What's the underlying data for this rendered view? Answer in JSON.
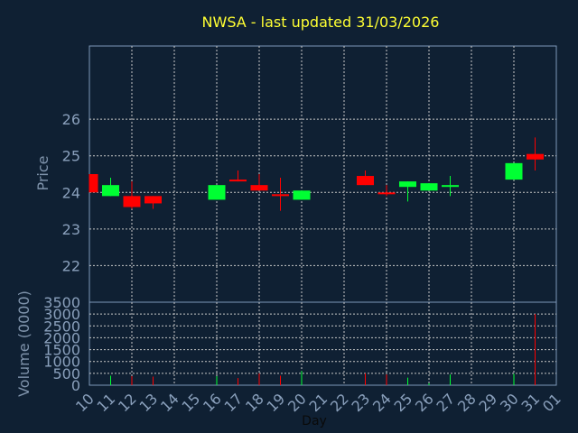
{
  "chart_data": {
    "type": "candlestick",
    "title": "NWSA - last updated 31/03/2026",
    "price_panel": {
      "ylabel": "Price",
      "yticks": [
        "22",
        "23",
        "24",
        "25",
        "26"
      ],
      "ylim": [
        21.0,
        28.0
      ]
    },
    "volume_panel": {
      "ylabel": "Volume (0000)",
      "yticks": [
        "0",
        "500",
        "1000",
        "1500",
        "2000",
        "2500",
        "3000",
        "3500"
      ],
      "ylim": [
        0,
        3500
      ]
    },
    "xlabel": "Day",
    "xticks": [
      "10",
      "11",
      "12",
      "13",
      "14",
      "15",
      "16",
      "17",
      "18",
      "19",
      "20",
      "21",
      "22",
      "23",
      "24",
      "25",
      "26",
      "27",
      "28",
      "29",
      "30",
      "31",
      "01"
    ],
    "candles": [
      {
        "day": 10,
        "open": 24.5,
        "high": 24.5,
        "low": 24.0,
        "close": 24.0,
        "volume": 0
      },
      {
        "day": 11,
        "open": 23.9,
        "high": 24.4,
        "low": 23.9,
        "close": 24.2,
        "volume": 400
      },
      {
        "day": 12,
        "open": 23.9,
        "high": 24.3,
        "low": 23.55,
        "close": 23.6,
        "volume": 380
      },
      {
        "day": 13,
        "open": 23.9,
        "high": 23.9,
        "low": 23.55,
        "close": 23.7,
        "volume": 360
      },
      {
        "day": 16,
        "open": 23.8,
        "high": 24.2,
        "low": 23.8,
        "close": 24.2,
        "volume": 380
      },
      {
        "day": 17,
        "open": 24.35,
        "high": 24.6,
        "low": 24.3,
        "close": 24.3,
        "volume": 300
      },
      {
        "day": 18,
        "open": 24.2,
        "high": 24.5,
        "low": 24.05,
        "close": 24.05,
        "volume": 500
      },
      {
        "day": 19,
        "open": 23.95,
        "high": 24.4,
        "low": 23.5,
        "close": 23.9,
        "volume": 400
      },
      {
        "day": 20,
        "open": 23.8,
        "high": 24.05,
        "low": 23.8,
        "close": 24.05,
        "volume": 600
      },
      {
        "day": 23,
        "open": 24.45,
        "high": 24.6,
        "low": 24.2,
        "close": 24.2,
        "volume": 500
      },
      {
        "day": 24,
        "open": 24.0,
        "high": 24.2,
        "low": 23.9,
        "close": 23.95,
        "volume": 450
      },
      {
        "day": 25,
        "open": 24.15,
        "high": 24.3,
        "low": 23.75,
        "close": 24.3,
        "volume": 320
      },
      {
        "day": 26,
        "open": 24.05,
        "high": 24.25,
        "low": 24.05,
        "close": 24.25,
        "volume": 80
      },
      {
        "day": 27,
        "open": 24.15,
        "high": 24.45,
        "low": 23.9,
        "close": 24.2,
        "volume": 450
      },
      {
        "day": 30,
        "open": 24.35,
        "high": 24.8,
        "low": 24.35,
        "close": 24.8,
        "volume": 480
      },
      {
        "day": 31,
        "open": 25.05,
        "high": 25.5,
        "low": 24.6,
        "close": 24.9,
        "volume": 3000
      }
    ],
    "grid": true,
    "colors": {
      "background": "#0f2033",
      "plot_background": "#0f2033",
      "grid": "#c8c8c8",
      "frame": "#7d98b8",
      "up": "#00ff33",
      "down": "#ff0000",
      "title": "#ffff33",
      "axis_text": "#8aa0bc"
    }
  }
}
